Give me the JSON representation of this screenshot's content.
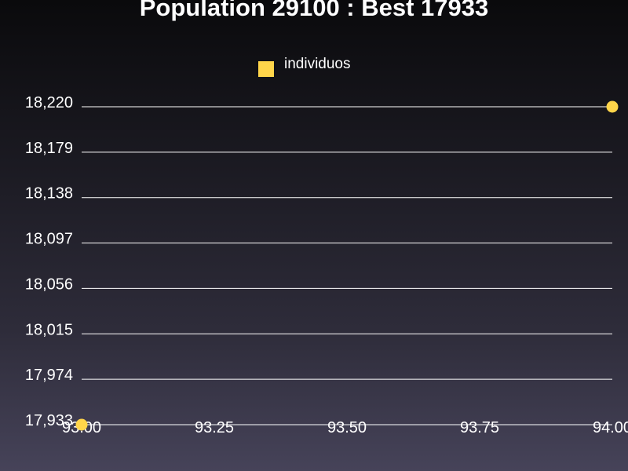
{
  "chart_data": {
    "type": "scatter",
    "title": "Population 29100 : Best 17933",
    "xlabel": "",
    "ylabel": "",
    "legend": {
      "position": "top-center",
      "entries": [
        "individuos"
      ]
    },
    "series": [
      {
        "name": "individuos",
        "color": "#ffd54a",
        "points": [
          {
            "x": 93.0,
            "y": 17933
          },
          {
            "x": 94.0,
            "y": 18220
          }
        ]
      }
    ],
    "xlim": [
      93.0,
      94.0
    ],
    "ylim": [
      17933,
      18220
    ],
    "x_ticks": [
      "93.00",
      "93.25",
      "93.50",
      "93.75",
      "94.00"
    ],
    "y_ticks": [
      "17,933",
      "17,974",
      "18,015",
      "18,056",
      "18,097",
      "18,138",
      "18,179",
      "18,220"
    ],
    "grid": {
      "horizontal": true,
      "vertical": false,
      "color": "#ffffff"
    }
  }
}
